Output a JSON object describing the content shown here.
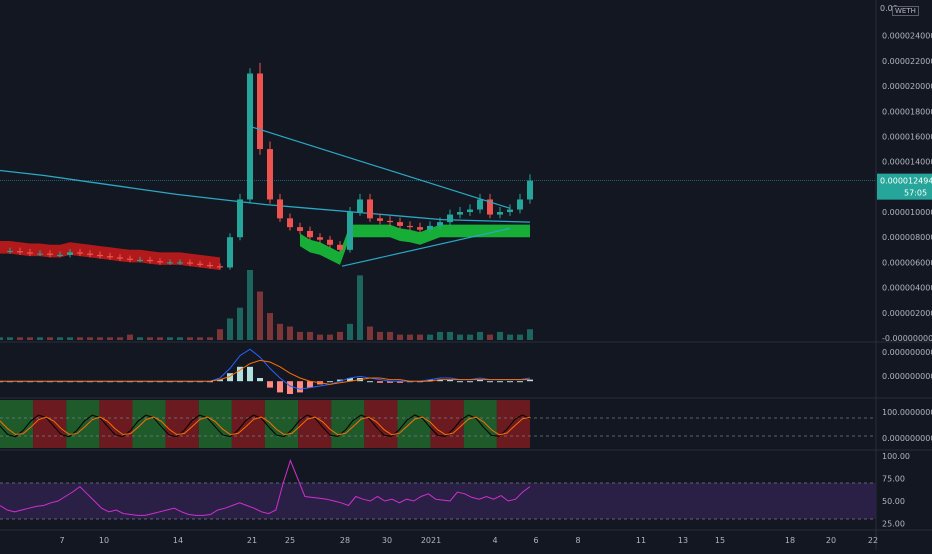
{
  "header": {
    "symbol_fragment": "WETH",
    "top_price_fragment": "0.00"
  },
  "price_badge": {
    "value": "0.0000124940",
    "countdown": "57:05"
  },
  "colors": {
    "background": "#131722",
    "up": "#26a69a",
    "down": "#ef5350",
    "accent_line": "#2aa8c4",
    "rsi_line": "#d12fd1",
    "rsi_band": "#2a1f45",
    "macd_line": "#2962ff",
    "signal_line": "#ff6d00",
    "bull_zone": "#1e5a2a",
    "bear_zone": "#6b1a1f"
  },
  "chart_data": [
    {
      "type": "candlestick",
      "panel": "price",
      "y_ticks": [
        "0.0000240000",
        "0.0000220000",
        "0.0000200000",
        "0.0000180000",
        "0.0000160000",
        "0.0000140000",
        "0.0000120000",
        "0.0000100000",
        "0.0000080000",
        "0.0000060000",
        "0.0000040000",
        "0.0000020000",
        "-0.0000000000"
      ],
      "ylim": [
        0,
        2.62e-05
      ],
      "last_price": 1.2494e-05,
      "x_ticks": [
        "7",
        "10",
        "14",
        "21",
        "25",
        "28",
        "30",
        "2021",
        "4",
        "6",
        "8",
        "11",
        "13",
        "15",
        "18",
        "20",
        "22"
      ],
      "series": [
        {
          "kind": "close_path",
          "values": [
            6.9e-06,
            6.9e-06,
            6.8e-06,
            6.7e-06,
            6.7e-06,
            6.6e-06,
            6.6e-06,
            6.8e-06,
            6.7e-06,
            6.6e-06,
            6.5e-06,
            6.4e-06,
            6.3e-06,
            6.2e-06,
            6.2e-06,
            6.1e-06,
            6e-06,
            6e-06,
            6e-06,
            5.9e-06,
            5.8e-06,
            5.7e-06,
            5.6e-06,
            8e-06,
            1.1e-05,
            2.1e-05,
            1.5e-05,
            1.1e-05,
            9.5e-06,
            8.8e-06,
            8.5e-06,
            8e-06,
            7.8e-06,
            7.4e-06,
            7e-06,
            1e-05,
            1.1e-05,
            9.5e-06,
            9.3e-06,
            9.2e-06,
            8.9e-06,
            8.8e-06,
            8.6e-06,
            8.9e-06,
            9.2e-06,
            9.8e-06,
            1e-05,
            1.02e-05,
            1.1e-05,
            9.8e-06,
            1e-05,
            1.02e-05,
            1.1e-05,
            1.25e-05
          ]
        }
      ],
      "long_ma": [
        1.33e-05,
        1.29e-05,
        1.24e-05,
        1.19e-05,
        1.14e-05,
        1.1e-05,
        1.06e-05,
        1.03e-05,
        1e-05,
        9.7e-06,
        9.4e-06,
        9.3e-06,
        9.2e-06
      ],
      "trendline_upper": [
        [
          1.68e-05,
          0
        ],
        [
          1.03e-05,
          1
        ]
      ],
      "trendline_lower": [
        [
          5.7e-06,
          0
        ],
        [
          8.7e-06,
          1
        ]
      ]
    },
    {
      "type": "bar",
      "panel": "volume",
      "values": [
        1,
        1,
        1,
        1,
        1,
        1,
        1,
        1,
        1,
        1,
        1,
        1,
        1,
        2,
        1,
        1,
        1,
        1,
        1,
        1,
        1,
        1,
        4,
        8,
        12,
        26,
        18,
        10,
        6,
        5,
        3,
        3,
        2,
        2,
        3,
        6,
        24,
        5,
        3,
        3,
        2,
        2,
        2,
        2,
        3,
        3,
        2,
        2,
        3,
        2,
        3,
        2,
        2,
        4
      ]
    },
    {
      "type": "line",
      "panel": "macd",
      "y_ticks": [
        "0.0000000000",
        "0.0000000000"
      ],
      "series": [
        {
          "name": "",
          "values": [
            0,
            0,
            0,
            0,
            0,
            0,
            0,
            0,
            0,
            0,
            0,
            0,
            0,
            0,
            0,
            0,
            0,
            0,
            0,
            0,
            0,
            0,
            0.2,
            0.8,
            1.6,
            2.0,
            1.5,
            0.8,
            0.2,
            -0.3,
            -0.5,
            -0.4,
            -0.3,
            -0.2,
            0,
            0.2,
            0.3,
            0.2,
            0.1,
            0,
            0,
            0,
            0,
            0.1,
            0.2,
            0.2,
            0.1,
            0.1,
            0.2,
            0.1,
            0.1,
            0.1,
            0.1,
            0.2
          ]
        },
        {
          "name": "",
          "values": [
            0,
            0,
            0,
            0,
            0,
            0,
            0,
            0,
            0,
            0,
            0,
            0,
            0,
            0,
            0,
            0,
            0,
            0,
            0,
            0,
            0,
            0,
            0.1,
            0.3,
            0.7,
            1.1,
            1.3,
            1.2,
            0.9,
            0.5,
            0.2,
            0,
            -0.1,
            -0.2,
            -0.1,
            0,
            0.1,
            0.2,
            0.2,
            0.1,
            0.1,
            0,
            0,
            0,
            0.1,
            0.1,
            0.1,
            0.1,
            0.1,
            0.1,
            0.1,
            0.1,
            0.1,
            0.1
          ]
        }
      ]
    },
    {
      "type": "line",
      "panel": "stoch",
      "y_ticks": [
        "100.0000000000",
        "0.0000000000"
      ],
      "zones": [
        "bull",
        "bear",
        "bull",
        "bear",
        "bull",
        "bear",
        "bull",
        "bear",
        "bull",
        "bear",
        "bull",
        "bear",
        "bull",
        "bear",
        "bull",
        "bear"
      ]
    },
    {
      "type": "line",
      "panel": "rsi",
      "y_ticks": [
        "100.00",
        "75.00",
        "50.00",
        "25.00"
      ],
      "ylim": [
        20,
        100
      ],
      "bands": [
        70,
        30
      ],
      "series": [
        {
          "name": "",
          "values": [
            45,
            40,
            38,
            40,
            42,
            44,
            45,
            48,
            50,
            55,
            60,
            66,
            58,
            50,
            42,
            38,
            40,
            36,
            35,
            34,
            34,
            36,
            38,
            40,
            42,
            38,
            35,
            34,
            34,
            35,
            40,
            42,
            45,
            48,
            45,
            42,
            38,
            36,
            40,
            70,
            95,
            75,
            55,
            54,
            53,
            52,
            50,
            48,
            45,
            55,
            52,
            50,
            55,
            50,
            52,
            48,
            52,
            50,
            55,
            58,
            52,
            51,
            50,
            60,
            58,
            54,
            52,
            55,
            52,
            56,
            50,
            52,
            60,
            66
          ]
        }
      ]
    }
  ]
}
